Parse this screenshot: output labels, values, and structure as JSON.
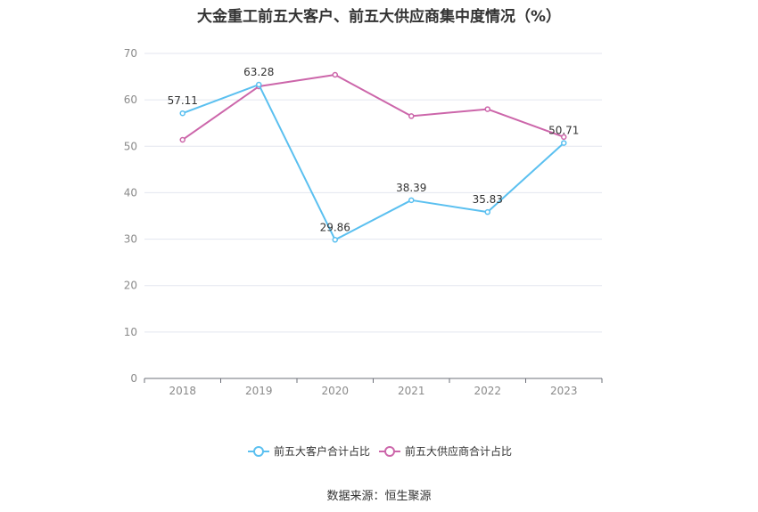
{
  "chart_data": {
    "type": "line",
    "title": "大金重工前五大客户、前五大供应商集中度情况（%）",
    "categories": [
      "2018",
      "2019",
      "2020",
      "2021",
      "2022",
      "2023"
    ],
    "series": [
      {
        "name": "前五大客户合计占比",
        "values": [
          57.11,
          63.28,
          29.86,
          38.39,
          35.83,
          50.71
        ],
        "color": "#5bc0f0",
        "show_labels": true
      },
      {
        "name": "前五大供应商合计占比",
        "values": [
          51.4,
          62.9,
          65.4,
          56.5,
          58.0,
          52.0
        ],
        "color": "#cc66aa",
        "show_labels": false
      }
    ],
    "ylim": [
      0,
      70
    ],
    "yticks": [
      0,
      10,
      20,
      30,
      40,
      50,
      60,
      70
    ],
    "grid": true,
    "legend_position": "bottom"
  },
  "source": "数据来源：恒生聚源"
}
